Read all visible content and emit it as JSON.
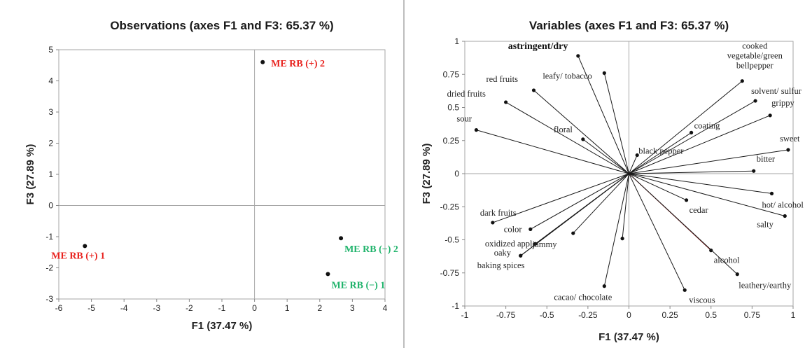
{
  "chart_data": [
    {
      "type": "scatter",
      "title": "Observations (axes F1 and F3: 65.37 %)",
      "xlabel": "F1 (37.47 %)",
      "ylabel": "F3 (27.89 %)",
      "xlim": [
        -6,
        4
      ],
      "ylim": [
        -3,
        5
      ],
      "xticks": [
        "-6",
        "-5",
        "-4",
        "-3",
        "-2",
        "-1",
        "0",
        "1",
        "2",
        "3",
        "4"
      ],
      "yticks": [
        "-3",
        "-2",
        "-1",
        "0",
        "1",
        "2",
        "3",
        "4",
        "5"
      ],
      "points": [
        {
          "label": "ME RB (+) 2",
          "x": 0.25,
          "y": 4.6,
          "color": "#e8211d",
          "label_pos": "right"
        },
        {
          "label": "ME RB (+) 1",
          "x": -5.2,
          "y": -1.3,
          "color": "#e8211d",
          "label_pos": "below"
        },
        {
          "label": "ME RB (−) 2",
          "x": 2.65,
          "y": -1.05,
          "color": "#1fb36b",
          "label_pos": "below"
        },
        {
          "label": "ME RB (−) 1",
          "x": 2.25,
          "y": -2.2,
          "color": "#1fb36b",
          "label_pos": "below"
        }
      ]
    },
    {
      "type": "scatter",
      "title": "Variables (axes F1 and F3: 65.37 %)",
      "xlabel": "F1 (37.47 %)",
      "ylabel": "F3 (27.89 %)",
      "xlim": [
        -1,
        1
      ],
      "ylim": [
        -1,
        1
      ],
      "xticks": [
        "-1",
        "-0.75",
        "-0.5",
        "-0.25",
        "0",
        "0.25",
        "0.5",
        "0.75",
        "1"
      ],
      "yticks": [
        "-1",
        "-0.75",
        "-0.5",
        "-0.25",
        "0",
        "0.25",
        "0.5",
        "0.75",
        "1"
      ],
      "vectors": [
        {
          "label": "astringent/dry",
          "x": -0.31,
          "y": 0.89,
          "bold": true
        },
        {
          "label": "leafy/ tobacco",
          "x": -0.15,
          "y": 0.76
        },
        {
          "label": "red fruits",
          "x": -0.58,
          "y": 0.63
        },
        {
          "label": "dried fruits",
          "x": -0.75,
          "y": 0.54
        },
        {
          "label": "sour",
          "x": -0.93,
          "y": 0.33
        },
        {
          "label": "floral",
          "x": -0.28,
          "y": 0.26
        },
        {
          "label": "cooked vegetable/green bellpepper",
          "x": 0.69,
          "y": 0.7
        },
        {
          "label": "solvent/ sulfur",
          "x": 0.77,
          "y": 0.55
        },
        {
          "label": "grippy",
          "x": 0.86,
          "y": 0.44
        },
        {
          "label": "coating",
          "x": 0.38,
          "y": 0.31
        },
        {
          "label": "black pepper",
          "x": 0.05,
          "y": 0.14
        },
        {
          "label": "sweet",
          "x": 0.97,
          "y": 0.18
        },
        {
          "label": "bitter",
          "x": 0.76,
          "y": 0.02
        },
        {
          "label": "hot/ alcohol",
          "x": 0.87,
          "y": -0.15
        },
        {
          "label": "cedar",
          "x": 0.35,
          "y": -0.2
        },
        {
          "label": "salty",
          "x": 0.95,
          "y": -0.32
        },
        {
          "label": "alcohol",
          "x": 0.5,
          "y": -0.58,
          "color": "#8b1a1a"
        },
        {
          "label": "leathery/earthy",
          "x": 0.66,
          "y": -0.76
        },
        {
          "label": "viscous",
          "x": 0.34,
          "y": -0.88
        },
        {
          "label": "dark fruits",
          "x": -0.83,
          "y": -0.37
        },
        {
          "label": "color",
          "x": -0.6,
          "y": -0.42
        },
        {
          "label": "oxidized apple",
          "x": -0.57,
          "y": -0.53
        },
        {
          "label": "jammy",
          "x": -0.34,
          "y": -0.45
        },
        {
          "label": "oaky",
          "x": -0.66,
          "y": -0.62
        },
        {
          "label": "baking spices",
          "x": -0.66,
          "y": -0.62
        },
        {
          "label": "cacao/ chocolate",
          "x": -0.15,
          "y": -0.85
        },
        {
          "label": "",
          "x": -0.04,
          "y": -0.49
        }
      ]
    }
  ]
}
